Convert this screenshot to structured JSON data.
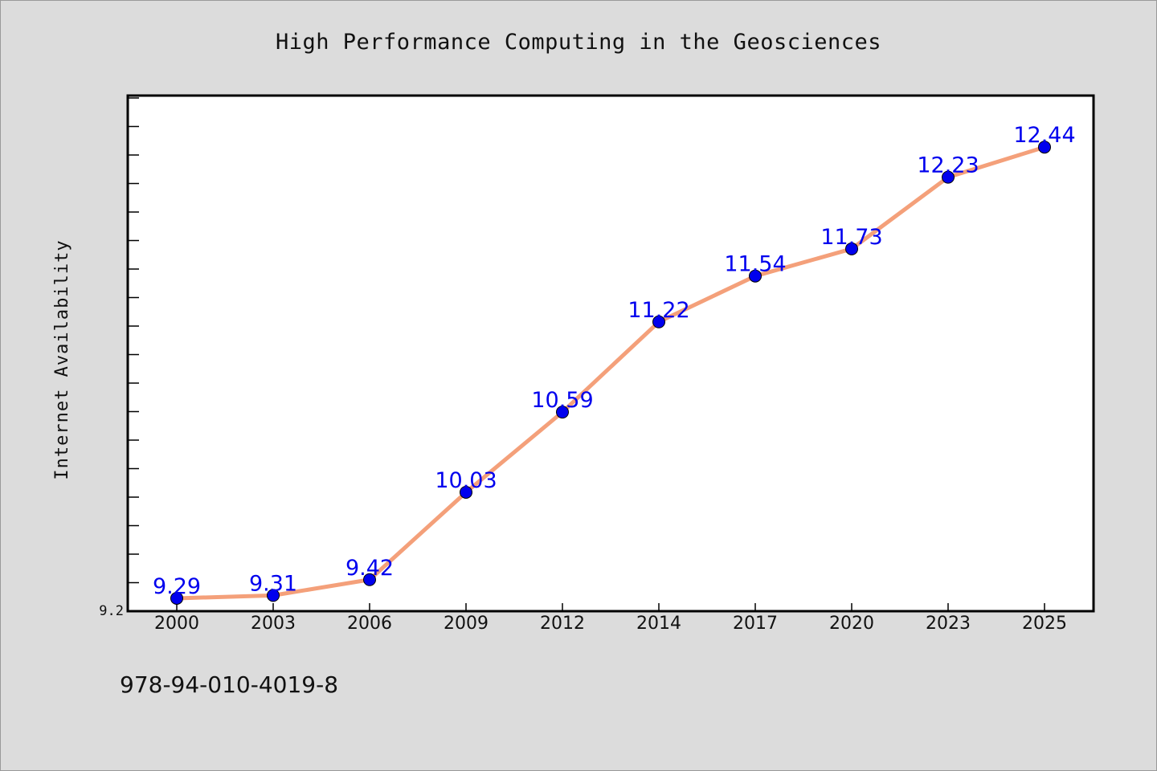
{
  "chart_data": {
    "type": "line",
    "title": "High Performance Computing in the Geosciences",
    "xlabel": "",
    "ylabel": "Internet Availability",
    "categories": [
      "2000",
      "2003",
      "2006",
      "2009",
      "2012",
      "2014",
      "2017",
      "2020",
      "2023",
      "2025"
    ],
    "series": [
      {
        "values": [
          9.29,
          9.31,
          9.42,
          10.03,
          10.59,
          11.22,
          11.54,
          11.73,
          12.23,
          12.44
        ],
        "line_color": "#f4a07a",
        "marker_color": "#0000ee",
        "label_color": "#0000ee"
      }
    ],
    "y_tick_labels": [
      {
        "value": 9.2,
        "label": "9.2"
      }
    ],
    "ylim": [
      9.2,
      12.8
    ],
    "grid": false,
    "legend": "none",
    "data_labels": true
  },
  "footer": {
    "text": "978-94-010-4019-8"
  }
}
